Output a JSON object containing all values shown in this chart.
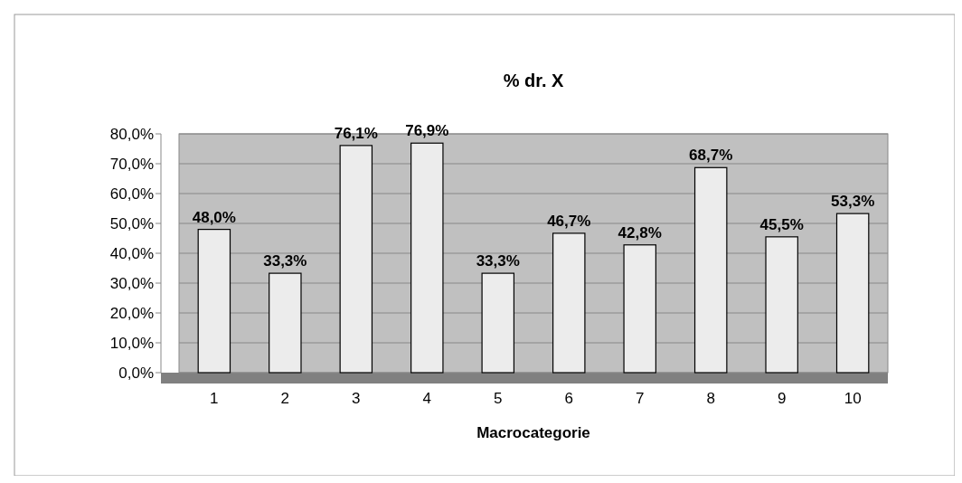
{
  "chart_data": {
    "type": "bar",
    "title": "% dr. X",
    "xlabel": "Macrocategorie",
    "categories": [
      "1",
      "2",
      "3",
      "4",
      "5",
      "6",
      "7",
      "8",
      "9",
      "10"
    ],
    "values": [
      48.0,
      33.3,
      76.1,
      76.9,
      33.3,
      46.7,
      42.8,
      68.7,
      45.5,
      53.3
    ],
    "value_labels": [
      "48,0%",
      "33,3%",
      "76,1%",
      "76,9%",
      "33,3%",
      "46,7%",
      "42,8%",
      "68,7%",
      "45,5%",
      "53,3%"
    ],
    "color": "#ececec",
    "ylim": [
      0,
      80
    ],
    "yticks": [
      {
        "value": 0,
        "label": "0,0%"
      },
      {
        "value": 10,
        "label": "10,0%"
      },
      {
        "value": 20,
        "label": "20,0%"
      },
      {
        "value": 30,
        "label": "30,0%"
      },
      {
        "value": 40,
        "label": "40,0%"
      },
      {
        "value": 50,
        "label": "50,0%"
      },
      {
        "value": 60,
        "label": "60,0%"
      },
      {
        "value": 70,
        "label": "70,0%"
      },
      {
        "value": 80,
        "label": "80,0%"
      }
    ],
    "grid": "y"
  }
}
